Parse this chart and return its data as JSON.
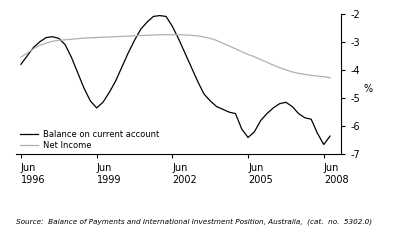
{
  "ylabel": "%",
  "ylim": [
    -7,
    -2
  ],
  "yticks": [
    -7,
    -6,
    -5,
    -4,
    -3,
    -2
  ],
  "source_text": "Source:  Balance of Payments and International Investment Position, Australia,  (cat.  no.  5302.0)",
  "legend_labels": [
    "Balance on current account",
    "Net Income"
  ],
  "line_colors": [
    "#000000",
    "#b0b0b0"
  ],
  "x_tick_labels": [
    "Jun\n1996",
    "Jun\n1999",
    "Jun\n2002",
    "Jun\n2005",
    "Jun\n2008"
  ],
  "x_tick_positions": [
    1996.5,
    1999.5,
    2002.5,
    2005.5,
    2008.5
  ],
  "xlim": [
    1996.3,
    2009.2
  ],
  "balance_x": [
    1996.5,
    1996.75,
    1997.0,
    1997.25,
    1997.5,
    1997.75,
    1998.0,
    1998.25,
    1998.5,
    1998.75,
    1999.0,
    1999.25,
    1999.5,
    1999.75,
    2000.0,
    2000.25,
    2000.5,
    2000.75,
    2001.0,
    2001.25,
    2001.5,
    2001.75,
    2002.0,
    2002.25,
    2002.5,
    2002.75,
    2003.0,
    2003.25,
    2003.5,
    2003.75,
    2004.0,
    2004.25,
    2004.5,
    2004.75,
    2005.0,
    2005.25,
    2005.5,
    2005.75,
    2006.0,
    2006.25,
    2006.5,
    2006.75,
    2007.0,
    2007.25,
    2007.5,
    2007.75,
    2008.0,
    2008.25,
    2008.5,
    2008.75
  ],
  "balance_y": [
    -3.8,
    -3.5,
    -3.2,
    -3.0,
    -2.85,
    -2.82,
    -2.88,
    -3.1,
    -3.55,
    -4.1,
    -4.65,
    -5.1,
    -5.35,
    -5.15,
    -4.8,
    -4.4,
    -3.9,
    -3.4,
    -2.95,
    -2.55,
    -2.3,
    -2.1,
    -2.07,
    -2.1,
    -2.45,
    -2.9,
    -3.4,
    -3.9,
    -4.4,
    -4.85,
    -5.1,
    -5.3,
    -5.4,
    -5.5,
    -5.55,
    -6.1,
    -6.4,
    -6.2,
    -5.8,
    -5.55,
    -5.35,
    -5.2,
    -5.15,
    -5.3,
    -5.55,
    -5.7,
    -5.75,
    -6.25,
    -6.65,
    -6.35
  ],
  "income_x": [
    1996.5,
    1996.75,
    1997.0,
    1997.25,
    1997.5,
    1997.75,
    1998.0,
    1998.25,
    1998.5,
    1998.75,
    1999.0,
    1999.25,
    1999.5,
    1999.75,
    2000.0,
    2000.25,
    2000.5,
    2000.75,
    2001.0,
    2001.25,
    2001.5,
    2001.75,
    2002.0,
    2002.25,
    2002.5,
    2002.75,
    2003.0,
    2003.25,
    2003.5,
    2003.75,
    2004.0,
    2004.25,
    2004.5,
    2004.75,
    2005.0,
    2005.25,
    2005.5,
    2005.75,
    2006.0,
    2006.25,
    2006.5,
    2006.75,
    2007.0,
    2007.25,
    2007.5,
    2007.75,
    2008.0,
    2008.25,
    2008.5,
    2008.75
  ],
  "income_y": [
    -3.55,
    -3.4,
    -3.25,
    -3.12,
    -3.05,
    -2.98,
    -2.95,
    -2.93,
    -2.91,
    -2.89,
    -2.87,
    -2.86,
    -2.85,
    -2.84,
    -2.83,
    -2.82,
    -2.81,
    -2.8,
    -2.79,
    -2.78,
    -2.77,
    -2.76,
    -2.75,
    -2.75,
    -2.75,
    -2.75,
    -2.76,
    -2.77,
    -2.79,
    -2.83,
    -2.88,
    -2.95,
    -3.05,
    -3.15,
    -3.25,
    -3.35,
    -3.45,
    -3.53,
    -3.63,
    -3.73,
    -3.83,
    -3.92,
    -4.0,
    -4.07,
    -4.12,
    -4.16,
    -4.19,
    -4.22,
    -4.24,
    -4.28
  ]
}
